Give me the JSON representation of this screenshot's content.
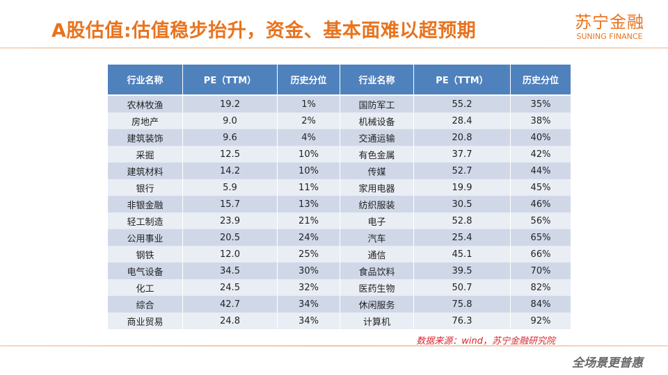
{
  "header": {
    "title": "A股估值:估值稳步抬升，资金、基本面难以超预期",
    "logo_cn": "苏宁金融",
    "logo_en": "SUNING FINANCE"
  },
  "table": {
    "columns": [
      "行业名称",
      "PE（TTM）",
      "历史分位",
      "行业名称",
      "PE（TTM）",
      "历史分位"
    ],
    "rows": [
      [
        "农林牧渔",
        "19.2",
        "1%",
        "国防军工",
        "55.2",
        "35%"
      ],
      [
        "房地产",
        "9.0",
        "2%",
        "机械设备",
        "28.4",
        "38%"
      ],
      [
        "建筑装饰",
        "9.6",
        "4%",
        "交通运输",
        "20.8",
        "40%"
      ],
      [
        "采掘",
        "12.5",
        "10%",
        "有色金属",
        "37.7",
        "42%"
      ],
      [
        "建筑材料",
        "14.2",
        "10%",
        "传媒",
        "52.7",
        "44%"
      ],
      [
        "银行",
        "5.9",
        "11%",
        "家用电器",
        "19.9",
        "45%"
      ],
      [
        "非银金融",
        "15.7",
        "13%",
        "纺织服装",
        "30.5",
        "46%"
      ],
      [
        "轻工制造",
        "23.9",
        "21%",
        "电子",
        "52.8",
        "56%"
      ],
      [
        "公用事业",
        "20.5",
        "24%",
        "汽车",
        "25.4",
        "65%"
      ],
      [
        "钢铁",
        "12.0",
        "25%",
        "通信",
        "45.1",
        "66%"
      ],
      [
        "电气设备",
        "34.5",
        "30%",
        "食品饮料",
        "39.5",
        "70%"
      ],
      [
        "化工",
        "24.5",
        "32%",
        "医药生物",
        "50.7",
        "82%"
      ],
      [
        "综合",
        "42.7",
        "34%",
        "休闲服务",
        "75.8",
        "84%"
      ],
      [
        "商业贸易",
        "24.8",
        "34%",
        "计算机",
        "76.3",
        "92%"
      ]
    ]
  },
  "footer": {
    "source": "数据来源：wind，苏宁金融研究院",
    "slogan": "全场景更普惠"
  },
  "colors": {
    "accent": "#e8731e",
    "table_header": "#4f81bd",
    "source_text": "#d9262e"
  }
}
